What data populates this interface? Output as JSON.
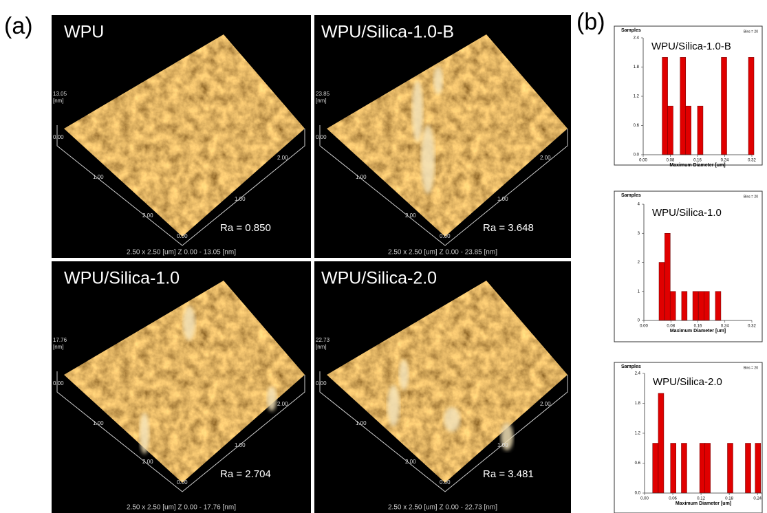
{
  "panel_a": {
    "label": "(a)",
    "images": [
      {
        "title": "WPU",
        "ra": "Ra = 0.850",
        "caption": "2.50 x 2.50 [um]   Z  0.00  -  13.05 [nm]",
        "z_max": "13.05",
        "z_unit": "[nm]",
        "axis_labels": [
          "0.00",
          "2.00",
          "1.00",
          "1.00",
          "2.00",
          "0.00"
        ]
      },
      {
        "title": "WPU/Silica-1.0-B",
        "ra": "Ra = 3.648",
        "caption": "2.50 x 2.50 [um]   Z  0.00  -  23.85 [nm]",
        "z_max": "23.85",
        "z_unit": "[nm]",
        "axis_labels": [
          "0.00",
          "2.00",
          "1.00",
          "1.00",
          "2.00",
          "0.00"
        ]
      },
      {
        "title": "WPU/Silica-1.0",
        "ra": "Ra = 2.704",
        "caption": "2.50 x 2.50 [um]   Z  0.00  -  17.76 [nm]",
        "z_max": "17.76",
        "z_unit": "[nm]",
        "axis_labels": [
          "0.00",
          "2.00",
          "1.00",
          "1.00",
          "2.00",
          "0.00"
        ]
      },
      {
        "title": "WPU/Silica-2.0",
        "ra": "Ra = 3.481",
        "caption": "2.50 x 2.50 [um]   Z  0.00  -  22.73 [nm]",
        "z_max": "22.73",
        "z_unit": "[nm]",
        "axis_labels": [
          "0.00",
          "2.00",
          "1.00",
          "1.00",
          "2.00",
          "0.00"
        ]
      }
    ]
  },
  "panel_b": {
    "label": "(b)"
  },
  "chart_data": [
    {
      "type": "bar",
      "title": "WPU/Silica-1.0-B",
      "y_label": "Samples",
      "bins_label": "Bins = 20",
      "x_label": "Maximum Diameter [um]",
      "color": "#e00000",
      "x": [
        0.064,
        0.08,
        0.117,
        0.133,
        0.168,
        0.238,
        0.318
      ],
      "values": [
        2,
        1,
        2,
        1,
        1,
        2,
        2
      ],
      "xlim": [
        0,
        0.32
      ],
      "xticks": [
        {
          "value": 0,
          "label": "0.00"
        },
        0.08,
        0.16,
        0.24,
        0.32
      ],
      "ylim": [
        0,
        2.4
      ],
      "yticks": [
        {
          "value": 0,
          "label": "0.0"
        },
        0.6,
        1.2,
        1.8,
        2.4
      ]
    },
    {
      "type": "bar",
      "title": "WPU/Silica-1.0",
      "y_label": "Samples",
      "bins_label": "Bins = 20",
      "x_label": "Maximum Diameter [um]",
      "color": "#e00000",
      "x": [
        0.053,
        0.07,
        0.086,
        0.12,
        0.153,
        0.17,
        0.186,
        0.22
      ],
      "values": [
        2,
        3,
        1,
        1,
        1,
        1,
        1,
        1
      ],
      "xlim": [
        0,
        0.32
      ],
      "xticks": [
        {
          "value": 0,
          "label": "0.00"
        },
        0.08,
        0.16,
        0.24,
        0.32
      ],
      "ylim": [
        0,
        4
      ],
      "yticks": [
        0,
        1,
        2,
        3,
        4
      ]
    },
    {
      "type": "bar",
      "title": "WPU/Silica-2.0",
      "y_label": "Samples",
      "bins_label": "Bins = 20",
      "x_label": "Maximum Diameter [um]",
      "color": "#e00000",
      "x": [
        0.023,
        0.035,
        0.061,
        0.084,
        0.123,
        0.134,
        0.182,
        0.22,
        0.241
      ],
      "values": [
        1,
        2,
        1,
        1,
        1,
        1,
        1,
        1,
        1
      ],
      "xlim": [
        0,
        0.25
      ],
      "xticks": [
        {
          "value": 0,
          "label": "0.00"
        },
        0.06,
        0.12,
        0.18,
        0.24
      ],
      "ylim": [
        0,
        2.4
      ],
      "yticks": [
        {
          "value": 0,
          "label": "0.0"
        },
        0.6,
        1.2,
        1.8,
        2.4
      ]
    }
  ]
}
